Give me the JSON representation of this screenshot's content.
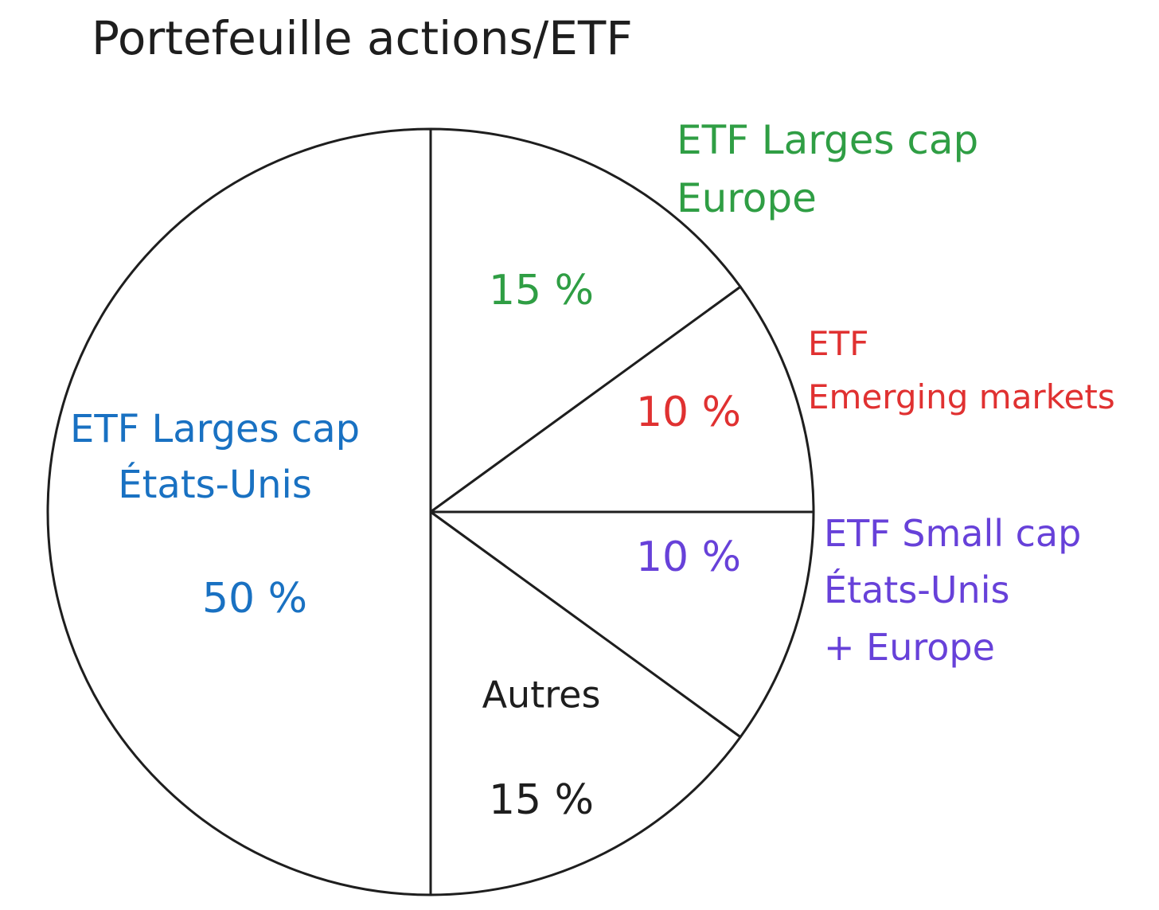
{
  "chart_data": {
    "type": "pie",
    "title": "Portefeuille actions/ETF",
    "categories": [
      "ETF Larges cap\nEurope",
      "ETF\nEmerging markets",
      "ETF Small cap\nÉtats-Unis\n+ Europe",
      "Autres",
      "ETF Larges cap\nÉtats-Unis"
    ],
    "values": [
      15,
      10,
      10,
      15,
      50
    ],
    "value_labels": [
      "15 %",
      "10 %",
      "10 %",
      "15 %",
      "50 %"
    ],
    "colors": [
      "#2f9e44",
      "#e03131",
      "#6741d9",
      "#1e1e1e",
      "#1971c2"
    ]
  }
}
